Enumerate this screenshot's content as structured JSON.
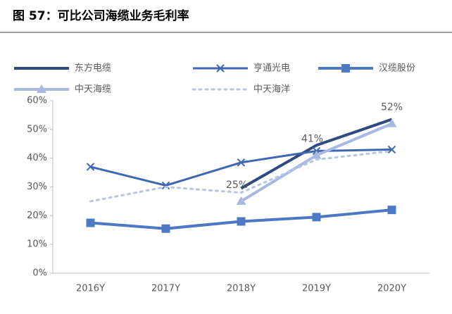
{
  "chart_data": {
    "type": "line",
    "title": "图 57：可比公司海缆业务毛利率",
    "categories": [
      "2016Y",
      "2017Y",
      "2018Y",
      "2019Y",
      "2020Y"
    ],
    "series": [
      {
        "name": "东方电缆",
        "color": "#2f4a7e",
        "width": 4,
        "marker": "none",
        "dash": "solid",
        "values": [
          null,
          null,
          29.5,
          44.5,
          53.5
        ]
      },
      {
        "name": "亨通光电",
        "color": "#3f66b3",
        "width": 3,
        "marker": "x",
        "dash": "solid",
        "values": [
          37,
          30.5,
          38.5,
          42.5,
          43
        ]
      },
      {
        "name": "汉缆股份",
        "color": "#4d78c4",
        "width": 4,
        "marker": "square",
        "dash": "solid",
        "values": [
          17.5,
          15.5,
          18,
          19.5,
          22
        ]
      },
      {
        "name": "中天海缆",
        "color": "#a7b9e0",
        "width": 4,
        "marker": "triangle",
        "dash": "solid",
        "values": [
          null,
          null,
          25,
          41,
          52
        ],
        "value_labels": [
          null,
          null,
          "25%",
          "41%",
          "52%"
        ]
      },
      {
        "name": "中天海洋",
        "color": "#b9c5e5",
        "width": 3,
        "marker": "none",
        "dash": "dot",
        "values": [
          25,
          30,
          28,
          39.5,
          42.5
        ]
      }
    ],
    "ylim": [
      0,
      60
    ],
    "yticks": [
      {
        "value": 0,
        "label": "0%"
      },
      {
        "value": 10,
        "label": "10%"
      },
      {
        "value": 20,
        "label": "20%"
      },
      {
        "value": 30,
        "label": "30%"
      },
      {
        "value": 40,
        "label": "40%"
      },
      {
        "value": 50,
        "label": "50%"
      },
      {
        "value": 60,
        "label": "60%"
      }
    ],
    "grid": false,
    "legend": "top"
  }
}
